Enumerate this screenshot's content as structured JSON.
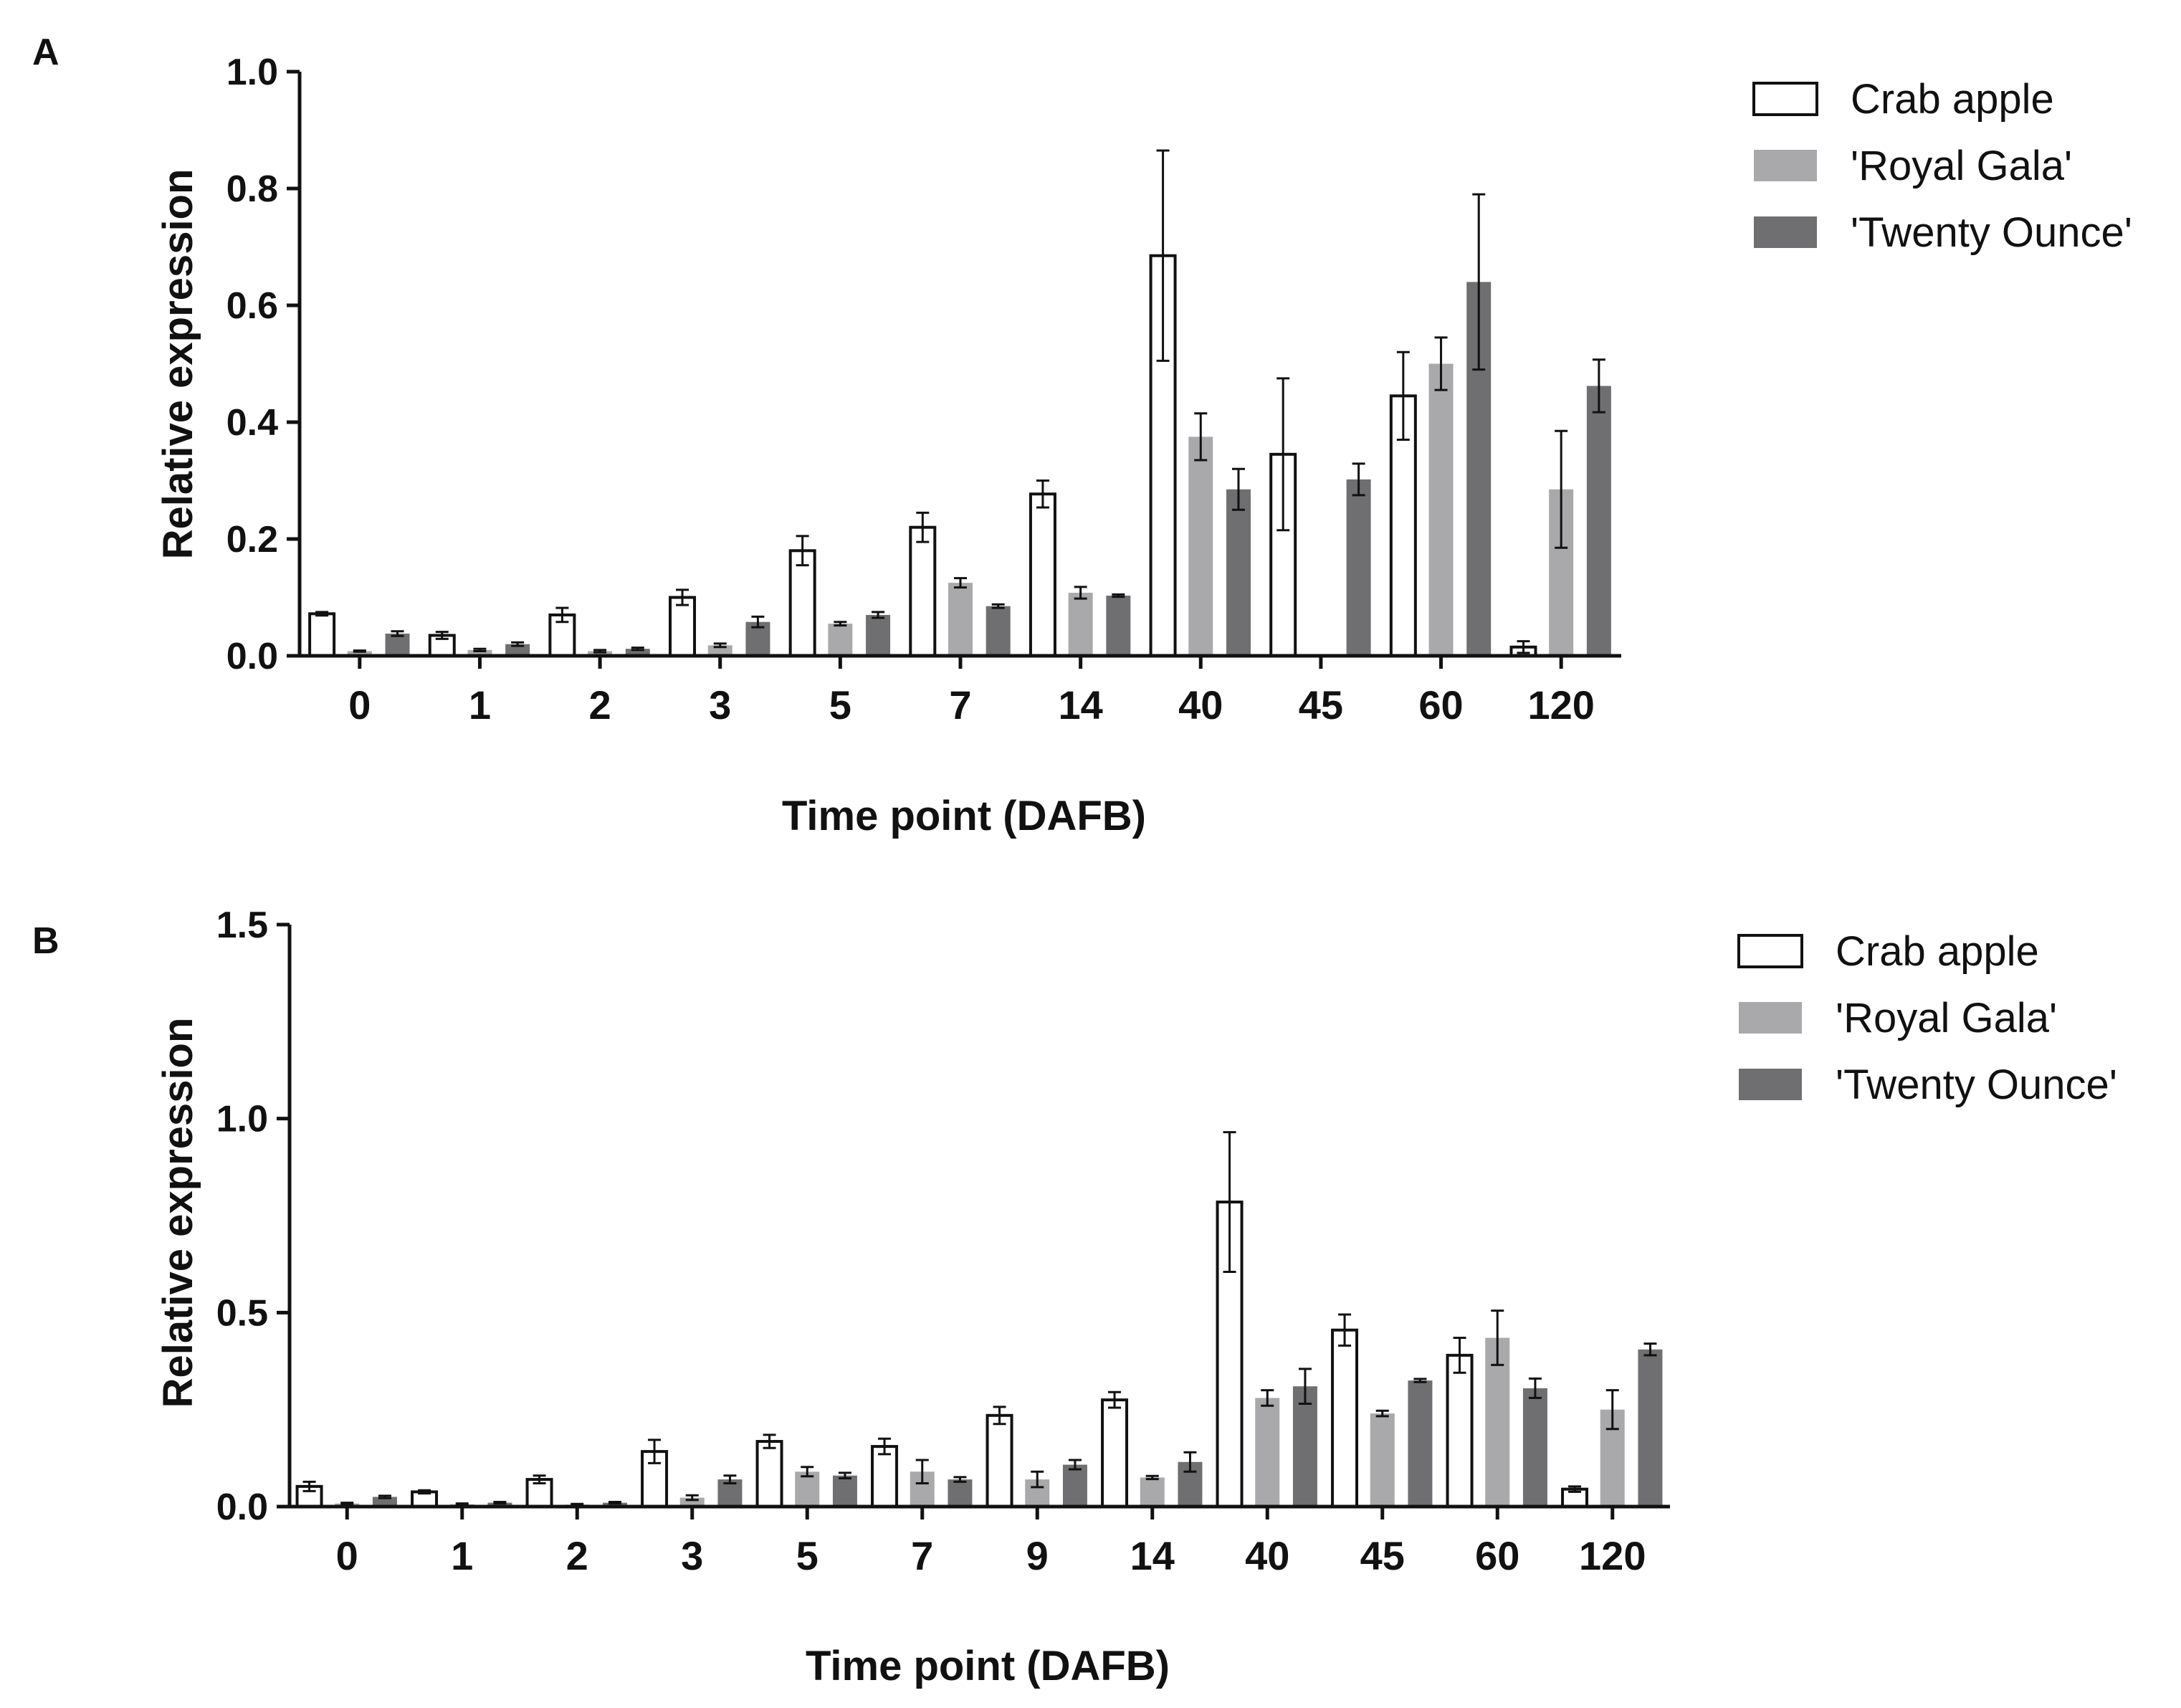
{
  "chart_data": [
    {
      "panel": "A",
      "type": "bar",
      "xlabel": "Time point (DAFB)",
      "ylabel": "Relative expression",
      "ylim": [
        0,
        1.0
      ],
      "yticks": [
        "0.0",
        "0.2",
        "0.4",
        "0.6",
        "0.8",
        "1.0"
      ],
      "yticks_values": [
        0,
        0.2,
        0.4,
        0.6,
        0.8,
        1.0
      ],
      "categories": [
        "0",
        "1",
        "2",
        "3",
        "5",
        "7",
        "14",
        "40",
        "45",
        "60",
        "120"
      ],
      "series": [
        {
          "name": "Crab apple",
          "color": "#ffffff",
          "values": [
            0.072,
            0.035,
            0.07,
            0.1,
            0.18,
            0.22,
            0.277,
            0.685,
            0.345,
            0.445,
            0.015
          ],
          "errors": [
            0.003,
            0.006,
            0.012,
            0.013,
            0.025,
            0.025,
            0.023,
            0.18,
            0.13,
            0.075,
            0.01
          ]
        },
        {
          "name": "'Royal Gala'",
          "color": "#a9a9ab",
          "values": [
            0.008,
            0.01,
            0.008,
            0.018,
            0.055,
            0.125,
            0.108,
            0.375,
            0.0,
            0.5,
            0.285
          ],
          "errors": [
            0.001,
            0.002,
            0.002,
            0.003,
            0.003,
            0.008,
            0.01,
            0.04,
            0.0,
            0.045,
            0.1
          ]
        },
        {
          "name": "'Twenty Ounce'",
          "color": "#6f6f71",
          "values": [
            0.038,
            0.02,
            0.012,
            0.058,
            0.07,
            0.085,
            0.103,
            0.285,
            0.302,
            0.64,
            0.462
          ],
          "errors": [
            0.004,
            0.003,
            0.002,
            0.009,
            0.005,
            0.003,
            0.002,
            0.035,
            0.027,
            0.15,
            0.045
          ]
        }
      ]
    },
    {
      "panel": "B",
      "type": "bar",
      "xlabel": "Time point (DAFB)",
      "ylabel": "Relative expression",
      "ylim": [
        0,
        1.5
      ],
      "yticks": [
        "0.0",
        "0.5",
        "1.0",
        "1.5"
      ],
      "yticks_values": [
        0,
        0.5,
        1.0,
        1.5
      ],
      "categories": [
        "0",
        "1",
        "2",
        "3",
        "5",
        "7",
        "9",
        "14",
        "40",
        "45",
        "60",
        "120"
      ],
      "series": [
        {
          "name": "Crab apple",
          "color": "#ffffff",
          "values": [
            0.052,
            0.038,
            0.07,
            0.142,
            0.168,
            0.155,
            0.235,
            0.275,
            0.785,
            0.455,
            0.39,
            0.045
          ],
          "errors": [
            0.012,
            0.004,
            0.01,
            0.03,
            0.017,
            0.02,
            0.022,
            0.02,
            0.18,
            0.04,
            0.045,
            0.007
          ]
        },
        {
          "name": "'Royal Gala'",
          "color": "#a9a9ab",
          "values": [
            0.008,
            0.006,
            0.005,
            0.023,
            0.09,
            0.09,
            0.07,
            0.075,
            0.28,
            0.24,
            0.435,
            0.25
          ],
          "errors": [
            0.002,
            0.002,
            0.002,
            0.006,
            0.012,
            0.03,
            0.02,
            0.004,
            0.02,
            0.007,
            0.07,
            0.05
          ]
        },
        {
          "name": "'Twenty Ounce'",
          "color": "#6f6f71",
          "values": [
            0.025,
            0.01,
            0.01,
            0.07,
            0.08,
            0.07,
            0.108,
            0.115,
            0.31,
            0.325,
            0.305,
            0.405
          ],
          "errors": [
            0.003,
            0.002,
            0.002,
            0.01,
            0.007,
            0.006,
            0.012,
            0.025,
            0.045,
            0.004,
            0.025,
            0.015
          ]
        }
      ]
    }
  ]
}
